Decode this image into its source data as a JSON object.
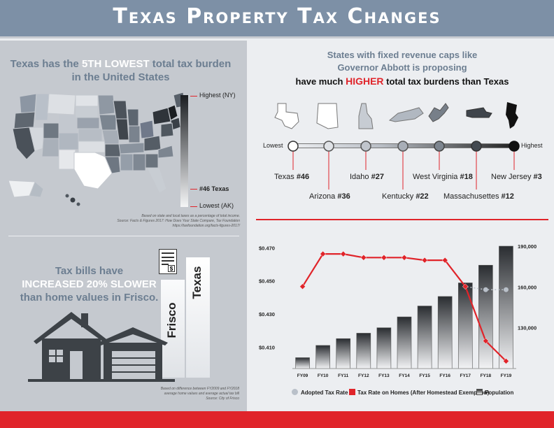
{
  "header": {
    "title": "Texas Property Tax Changes"
  },
  "left_top": {
    "heading_pre": "Texas has the ",
    "heading_hl": "5TH LOWEST",
    "heading_post": " total tax burden",
    "heading_line2": "in the United States",
    "legend_high": "Highest (NY)",
    "legend_texas": "#46 Texas",
    "legend_low": "Lowest (AK)",
    "source_line1": "Based on state and local taxes as a percentage of total income.",
    "source_line2": "Source: Facts & Figures 2017: How Does Your State Compare, Tax Foundation",
    "source_line3": "https://taxfoundation.org/facts-figures-2017/"
  },
  "left_bottom": {
    "line1": "Tax bills have",
    "line2": "INCREASED 20% SLOWER",
    "line3": "than home values in Frisco.",
    "bar_frisco": "Frisco",
    "bar_texas": "Texas",
    "bill_symbol": "$",
    "source_line1": "Based on difference between FY2009 and FY2018",
    "source_line2": "average home values and average actual tax bill",
    "source_line3": "Source: City of Frisco"
  },
  "right_top": {
    "line1": "States with fixed revenue caps like",
    "line2": "Governor Abbott is proposing",
    "line3_pre": "have much ",
    "line3_hl": "HIGHER",
    "line3_post": " total tax burdens than Texas",
    "lowest": "Lowest",
    "highest": "Highest",
    "states": [
      {
        "name": "Texas",
        "rank": "#46"
      },
      {
        "name": "Arizona",
        "rank": "#36"
      },
      {
        "name": "Idaho",
        "rank": "#27"
      },
      {
        "name": "Kentucky",
        "rank": "#22"
      },
      {
        "name": "West Virginia",
        "rank": "#18"
      },
      {
        "name": "Massachusettes",
        "rank": "#12"
      },
      {
        "name": "New Jersey",
        "rank": "#3"
      }
    ]
  },
  "chart_data": {
    "type": "line",
    "categories": [
      "FY09",
      "FY10",
      "FY11",
      "FY12",
      "FY13",
      "FY14",
      "FY15",
      "FY16",
      "FY17",
      "FY18",
      "FY19"
    ],
    "y_left_ticks": [
      "$0.470",
      "$0.450",
      "$0.430",
      "$0.410"
    ],
    "y_right_ticks": [
      "190,000",
      "160,000",
      "130,000"
    ],
    "ylim_left": [
      0.397,
      0.471
    ],
    "ylim_right": [
      100000,
      190000
    ],
    "series": [
      {
        "name": "Adopted Tax Rate",
        "values": [
          0.4466,
          0.4663,
          0.4663,
          0.4641,
          0.4641,
          0.4641,
          0.4625,
          0.4625,
          0.4466,
          0.4447,
          0.4447
        ]
      },
      {
        "name": "Tax Rate on Homes (After Homestead Exemption)",
        "values": [
          0.4466,
          0.4663,
          0.4663,
          0.4641,
          0.4641,
          0.4641,
          0.4625,
          0.4625,
          0.4466,
          0.4137,
          0.4015
        ]
      },
      {
        "name": "Population",
        "values": [
          108000,
          117000,
          122000,
          126000,
          130000,
          138000,
          146000,
          153000,
          163000,
          176000,
          190000
        ]
      }
    ],
    "legend": [
      "Adopted Tax Rate",
      "Tax Rate on Homes (After Homestead Exemption)",
      "Population"
    ]
  },
  "colors": {
    "red": "#e0242a",
    "slate": "#6c7e91",
    "header": "#7d90a6"
  }
}
